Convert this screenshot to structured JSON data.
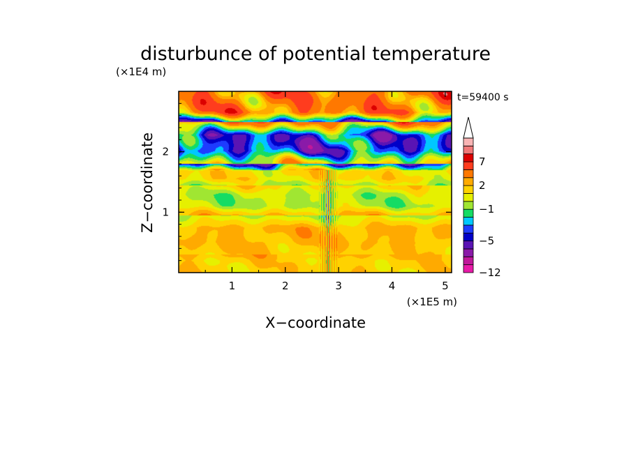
{
  "chart_data": {
    "type": "heatmap",
    "title": "disturbunce of potential temperature",
    "time_label": "t=59400 s",
    "xlabel": "X−coordinate",
    "ylabel": "Z−coordinate",
    "x_unit": "(×1E5 m)",
    "y_unit": "(×1E4 m)",
    "xlim": [
      0,
      5.12
    ],
    "ylim": [
      0,
      3.0
    ],
    "x_ticks": [
      1,
      2,
      3,
      4,
      5
    ],
    "x_tick_labels": [
      "1",
      "2",
      "3",
      "4",
      "5"
    ],
    "y_ticks": [
      1,
      2
    ],
    "y_tick_labels": [
      "1",
      "2"
    ],
    "colorbar": {
      "levels": [
        -12,
        -10,
        -8,
        -6,
        -5,
        -4,
        -3,
        -2,
        -1,
        0,
        1,
        2,
        3,
        5,
        7,
        8,
        9
      ],
      "colors": [
        "#e81aa8",
        "#c0189a",
        "#8a1aa8",
        "#5a14b4",
        "#0000c8",
        "#1e3cff",
        "#00c8ff",
        "#14dc64",
        "#a0e632",
        "#e6f000",
        "#ffd200",
        "#ffaa00",
        "#ff7800",
        "#ff3c1e",
        "#dc0000",
        "#f07878",
        "#f8b4b4"
      ],
      "extend_max_color": "#ffffff",
      "tick_labels": [
        {
          "value": 7,
          "label": "7"
        },
        {
          "value": 2,
          "label": "2"
        },
        {
          "value": -1,
          "label": "−1"
        },
        {
          "value": -5,
          "label": "−5"
        },
        {
          "value": -12,
          "label": "−12"
        }
      ]
    },
    "field_description": {
      "bands": [
        {
          "z": [
            0.0,
            0.3
          ],
          "value": 1.6
        },
        {
          "z": [
            0.3,
            0.95
          ],
          "value": 2.2
        },
        {
          "z": [
            0.95,
            1.45
          ],
          "value": -0.2
        },
        {
          "z": [
            1.45,
            1.8
          ],
          "value": 1.3
        },
        {
          "z": [
            1.8,
            2.5
          ],
          "value": -4.0
        },
        {
          "z": [
            2.5,
            3.0
          ],
          "value": 3.8
        }
      ]
    }
  }
}
